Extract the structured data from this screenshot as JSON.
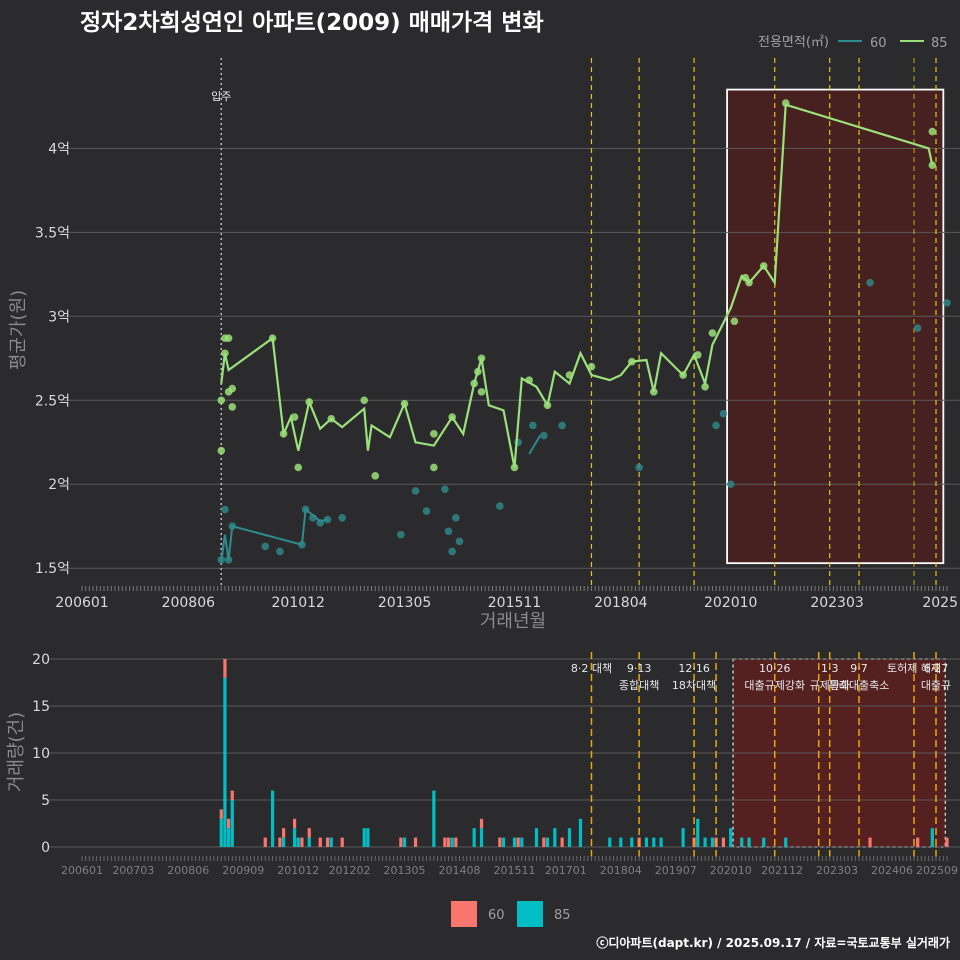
{
  "title": "정자2차희성연인 아파트(2009) 매매가격 변화",
  "footer": "ⓒ디아파트(dapt.kr) / 2025.09.17 / 자료=국토교통부 실거래가",
  "colors": {
    "background": "#2b2b2d",
    "price_60": "#2f8c8c",
    "price_85": "#9be07a",
    "vol_60": "#f8766d",
    "vol_85": "#00bfc4",
    "policy_line": "#e6c21a",
    "vol_policy_line": "#e6a80f",
    "shade": "#4a1f1f",
    "vol_shade": "#5a1f1f"
  },
  "price_legend": {
    "title": "전용면적(㎡)",
    "items": [
      {
        "label": "60",
        "color": "#2f8c8c"
      },
      {
        "label": "85",
        "color": "#9be07a"
      }
    ]
  },
  "volume_legend": {
    "items": [
      {
        "label": "60",
        "color": "#f8766d"
      },
      {
        "label": "85",
        "color": "#00bfc4"
      }
    ]
  },
  "chart_data": [
    {
      "type": "line",
      "ylabel": "평균가(원)",
      "xlabel": "거래년월",
      "xlim": [
        "2006-01",
        "2025-09"
      ],
      "ylim": [
        1.4,
        4.55
      ],
      "yticks": [
        1.5,
        2,
        2.5,
        3,
        3.5,
        4
      ],
      "ytick_labels": [
        "1.5억",
        "2억",
        "2.5억",
        "3억",
        "3.5억",
        "4억"
      ],
      "xtick_labels": [
        "200601",
        "200806",
        "201012",
        "201305",
        "201511",
        "201804",
        "202010",
        "202303",
        "2025"
      ],
      "move_in": {
        "label": "입주",
        "x": "2009-03"
      },
      "policy_dates": [
        "2017-08",
        "2018-09",
        "2019-12",
        "2021-10",
        "2023-01",
        "2023-09",
        "2025-06"
      ],
      "policy_dates_extra": [
        "2024-12"
      ],
      "highlight_range": [
        "2020-09",
        "2025-08"
      ],
      "highlight_y": [
        1.53,
        4.35
      ],
      "series": [
        {
          "name": "85",
          "line": [
            [
              "2009-03",
              2.6
            ],
            [
              "2009-04",
              2.78
            ],
            [
              "2009-05",
              2.68
            ],
            [
              "2010-05",
              2.87
            ],
            [
              "2010-08",
              2.3
            ],
            [
              "2010-10",
              2.4
            ],
            [
              "2010-12",
              2.2
            ],
            [
              "2011-03",
              2.49
            ],
            [
              "2011-06",
              2.33
            ],
            [
              "2011-09",
              2.39
            ],
            [
              "2011-12",
              2.34
            ],
            [
              "2012-06",
              2.45
            ],
            [
              "2012-07",
              2.2
            ],
            [
              "2012-08",
              2.35
            ],
            [
              "2013-01",
              2.28
            ],
            [
              "2013-05",
              2.48
            ],
            [
              "2013-08",
              2.25
            ],
            [
              "2014-01",
              2.23
            ],
            [
              "2014-06",
              2.4
            ],
            [
              "2014-09",
              2.3
            ],
            [
              "2014-12",
              2.6
            ],
            [
              "2015-02",
              2.75
            ],
            [
              "2015-04",
              2.47
            ],
            [
              "2015-08",
              2.44
            ],
            [
              "2015-11",
              2.1
            ],
            [
              "2016-01",
              2.63
            ],
            [
              "2016-05",
              2.58
            ],
            [
              "2016-08",
              2.47
            ],
            [
              "2016-10",
              2.67
            ],
            [
              "2017-02",
              2.6
            ],
            [
              "2017-05",
              2.78
            ],
            [
              "2017-08",
              2.65
            ],
            [
              "2018-01",
              2.62
            ],
            [
              "2018-04",
              2.65
            ],
            [
              "2018-07",
              2.73
            ],
            [
              "2018-11",
              2.74
            ],
            [
              "2019-01",
              2.55
            ],
            [
              "2019-03",
              2.78
            ],
            [
              "2019-09",
              2.65
            ],
            [
              "2019-12",
              2.77
            ],
            [
              "2020-03",
              2.6
            ],
            [
              "2020-05",
              2.83
            ],
            [
              "2020-10",
              3.05
            ],
            [
              "2021-01",
              3.24
            ],
            [
              "2021-03",
              3.2
            ],
            [
              "2021-07",
              3.3
            ],
            [
              "2021-10",
              3.2
            ],
            [
              "2022-01",
              4.26
            ],
            [
              "2025-04",
              4.0
            ],
            [
              "2025-05",
              3.9
            ]
          ],
          "points": [
            [
              "2009-03",
              2.5
            ],
            [
              "2009-03",
              2.2
            ],
            [
              "2009-04",
              2.78
            ],
            [
              "2009-04",
              2.87
            ],
            [
              "2009-05",
              2.87
            ],
            [
              "2009-06",
              2.57
            ],
            [
              "2009-06",
              2.46
            ],
            [
              "2009-05",
              2.55
            ],
            [
              "2010-05",
              2.87
            ],
            [
              "2010-08",
              2.3
            ],
            [
              "2010-11",
              2.4
            ],
            [
              "2010-12",
              2.1
            ],
            [
              "2011-03",
              2.49
            ],
            [
              "2011-09",
              2.39
            ],
            [
              "2012-06",
              2.5
            ],
            [
              "2012-09",
              2.05
            ],
            [
              "2013-05",
              2.48
            ],
            [
              "2014-01",
              2.1
            ],
            [
              "2014-01",
              2.3
            ],
            [
              "2014-06",
              2.4
            ],
            [
              "2014-12",
              2.6
            ],
            [
              "2015-01",
              2.67
            ],
            [
              "2015-02",
              2.75
            ],
            [
              "2015-02",
              2.55
            ],
            [
              "2015-11",
              2.1
            ],
            [
              "2016-03",
              2.62
            ],
            [
              "2016-08",
              2.47
            ],
            [
              "2017-02",
              2.65
            ],
            [
              "2017-08",
              2.7
            ],
            [
              "2018-07",
              2.73
            ],
            [
              "2019-01",
              2.55
            ],
            [
              "2019-09",
              2.65
            ],
            [
              "2020-01",
              2.77
            ],
            [
              "2020-03",
              2.58
            ],
            [
              "2020-05",
              2.9
            ],
            [
              "2020-11",
              2.97
            ],
            [
              "2021-02",
              3.23
            ],
            [
              "2021-03",
              3.2
            ],
            [
              "2021-07",
              3.3
            ],
            [
              "2022-01",
              4.27
            ],
            [
              "2025-05",
              4.1
            ],
            [
              "2025-05",
              3.9
            ]
          ]
        },
        {
          "name": "60",
          "line": [
            [
              "2009-03",
              1.54
            ],
            [
              "2009-04",
              1.7
            ],
            [
              "2009-05",
              1.55
            ],
            [
              "2009-06",
              1.75
            ],
            [
              "2011-01",
              1.64
            ],
            [
              "2011-02",
              1.85
            ],
            [
              "2011-06",
              1.78
            ],
            [
              "2011-08",
              1.79
            ],
            [
              "2016-03",
              2.18
            ],
            [
              "2016-06",
              2.29
            ]
          ],
          "points": [
            [
              "2009-03",
              1.55
            ],
            [
              "2009-04",
              1.85
            ],
            [
              "2009-05",
              1.55
            ],
            [
              "2009-06",
              1.75
            ],
            [
              "2010-03",
              1.63
            ],
            [
              "2010-07",
              1.6
            ],
            [
              "2011-01",
              1.64
            ],
            [
              "2011-02",
              1.85
            ],
            [
              "2011-04",
              1.8
            ],
            [
              "2011-06",
              1.77
            ],
            [
              "2011-08",
              1.79
            ],
            [
              "2011-12",
              1.8
            ],
            [
              "2013-04",
              1.7
            ],
            [
              "2013-08",
              1.96
            ],
            [
              "2013-11",
              1.84
            ],
            [
              "2014-04",
              1.97
            ],
            [
              "2014-05",
              1.72
            ],
            [
              "2014-07",
              1.8
            ],
            [
              "2014-06",
              1.6
            ],
            [
              "2014-08",
              1.66
            ],
            [
              "2015-07",
              1.87
            ],
            [
              "2015-12",
              2.25
            ],
            [
              "2016-04",
              2.35
            ],
            [
              "2016-07",
              2.29
            ],
            [
              "2016-12",
              2.35
            ],
            [
              "2018-09",
              2.1
            ],
            [
              "2020-06",
              2.35
            ],
            [
              "2020-08",
              2.42
            ],
            [
              "2020-10",
              2.0
            ],
            [
              "2023-12",
              3.2
            ],
            [
              "2025-01",
              2.93
            ],
            [
              "2025-09",
              3.08
            ]
          ]
        }
      ]
    },
    {
      "type": "bar",
      "ylabel": "거래량(건)",
      "ylim": [
        0,
        21
      ],
      "yticks": [
        0,
        5,
        10,
        15,
        20
      ],
      "xtick_labels": [
        "200601",
        "200703",
        "200806",
        "200909",
        "201012",
        "201202",
        "201305",
        "201408",
        "201511",
        "201701",
        "201804",
        "201907",
        "202010",
        "202112",
        "202303",
        "202406",
        "202509"
      ],
      "policy_lines": [
        {
          "date": "2017-08",
          "labels": [
            "8·2 대책"
          ]
        },
        {
          "date": "2018-09",
          "labels": [
            "9·13",
            "종합대책"
          ]
        },
        {
          "date": "2019-12",
          "labels": [
            "12·16",
            "18차대책"
          ]
        },
        {
          "date": "2020-06",
          "labels": []
        },
        {
          "date": "2021-10",
          "labels": [
            "10·26",
            "대출규제강화"
          ]
        },
        {
          "date": "2022-10",
          "labels": []
        },
        {
          "date": "2023-01",
          "labels": [
            "1·3",
            "규제완화"
          ]
        },
        {
          "date": "2023-09",
          "labels": [
            "9·7",
            "특례대출축소"
          ]
        },
        {
          "date": "2024-12",
          "labels": [
            "토허제 해제"
          ]
        },
        {
          "date": "2025-06",
          "labels": [
            "6·27",
            "대출규"
          ]
        }
      ],
      "highlight_range": [
        "2020-09",
        "2025-08"
      ],
      "series": [
        {
          "name": "60",
          "values": [
            [
              "2009-03",
              1
            ],
            [
              "2009-04",
              2
            ],
            [
              "2009-05",
              1
            ],
            [
              "2009-06",
              1
            ],
            [
              "2010-03",
              1
            ],
            [
              "2010-07",
              1
            ],
            [
              "2010-08",
              1
            ],
            [
              "2010-11",
              1
            ],
            [
              "2011-01",
              1
            ],
            [
              "2011-03",
              1
            ],
            [
              "2011-06",
              1
            ],
            [
              "2011-08",
              1
            ],
            [
              "2011-12",
              1
            ],
            [
              "2013-04",
              1
            ],
            [
              "2013-08",
              1
            ],
            [
              "2014-04",
              1
            ],
            [
              "2014-05",
              1
            ],
            [
              "2014-07",
              1
            ],
            [
              "2015-02",
              1
            ],
            [
              "2015-07",
              1
            ],
            [
              "2015-12",
              1
            ],
            [
              "2016-07",
              1
            ],
            [
              "2016-12",
              1
            ],
            [
              "2018-09",
              1
            ],
            [
              "2019-12",
              1
            ],
            [
              "2020-06",
              1
            ],
            [
              "2020-08",
              1
            ],
            [
              "2023-12",
              1
            ],
            [
              "2025-01",
              1
            ],
            [
              "2025-09",
              1
            ]
          ]
        },
        {
          "name": "85",
          "values": [
            [
              "2009-03",
              3
            ],
            [
              "2009-04",
              18
            ],
            [
              "2009-05",
              2
            ],
            [
              "2009-06",
              5
            ],
            [
              "2010-05",
              6
            ],
            [
              "2010-08",
              1
            ],
            [
              "2010-11",
              2
            ],
            [
              "2010-12",
              1
            ],
            [
              "2011-03",
              1
            ],
            [
              "2011-09",
              1
            ],
            [
              "2012-06",
              2
            ],
            [
              "2012-07",
              2
            ],
            [
              "2013-05",
              1
            ],
            [
              "2014-01",
              6
            ],
            [
              "2014-06",
              1
            ],
            [
              "2014-12",
              2
            ],
            [
              "2015-02",
              2
            ],
            [
              "2015-08",
              1
            ],
            [
              "2015-11",
              1
            ],
            [
              "2016-01",
              1
            ],
            [
              "2016-05",
              2
            ],
            [
              "2016-08",
              1
            ],
            [
              "2016-10",
              2
            ],
            [
              "2017-02",
              2
            ],
            [
              "2017-05",
              3
            ],
            [
              "2018-01",
              1
            ],
            [
              "2018-04",
              1
            ],
            [
              "2018-07",
              1
            ],
            [
              "2018-11",
              1
            ],
            [
              "2019-01",
              1
            ],
            [
              "2019-03",
              1
            ],
            [
              "2019-09",
              2
            ],
            [
              "2020-01",
              3
            ],
            [
              "2020-03",
              1
            ],
            [
              "2020-05",
              1
            ],
            [
              "2020-10",
              2
            ],
            [
              "2021-01",
              1
            ],
            [
              "2021-03",
              1
            ],
            [
              "2021-07",
              1
            ],
            [
              "2022-01",
              1
            ],
            [
              "2025-05",
              2
            ]
          ]
        }
      ]
    }
  ]
}
